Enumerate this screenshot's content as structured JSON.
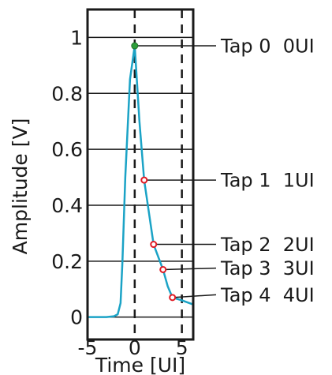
{
  "chart_data": {
    "type": "line",
    "title": "",
    "xlabel": "Time [UI]",
    "ylabel": "Amplitude [V]",
    "xlim": [
      -5,
      6.2
    ],
    "ylim": [
      -0.08,
      1.1
    ],
    "x_ticks": [
      {
        "value": -5,
        "label": "-5"
      },
      {
        "value": 0,
        "label": "0"
      },
      {
        "value": 5,
        "label": "5"
      }
    ],
    "y_ticks": [
      {
        "value": 0,
        "label": "0"
      },
      {
        "value": 0.2,
        "label": "0.2"
      },
      {
        "value": 0.4,
        "label": "0.4"
      },
      {
        "value": 0.6,
        "label": "0.6"
      },
      {
        "value": 0.8,
        "label": "0.8"
      },
      {
        "value": 1,
        "label": "1"
      }
    ],
    "horizontal_grid": true,
    "vertical_dashed_lines_x": [
      0,
      5
    ],
    "series": [
      {
        "color": "#1ba3c6",
        "x": [
          -5,
          -3,
          -2.2,
          -1.8,
          -1.5,
          -1.3,
          -1.0,
          -0.5,
          0,
          0.5,
          1.0,
          2.0,
          3.0,
          3.5,
          4.0,
          5.0,
          6.2
        ],
        "y": [
          0.0,
          0.0,
          0.003,
          0.01,
          0.05,
          0.2,
          0.5,
          0.85,
          0.97,
          0.7,
          0.49,
          0.26,
          0.17,
          0.11,
          0.07,
          0.06,
          0.045
        ]
      }
    ],
    "taps": [
      {
        "name": "Tap 0",
        "ui": "0UI",
        "x": 0,
        "y": 0.97,
        "marker": "filled",
        "color": "#2e9e3a",
        "label_y": 0.97
      },
      {
        "name": "Tap 1",
        "ui": "1UI",
        "x": 1,
        "y": 0.49,
        "marker": "open",
        "color": "#e01b24",
        "label_y": 0.49
      },
      {
        "name": "Tap 2",
        "ui": "2UI",
        "x": 2,
        "y": 0.26,
        "marker": "open",
        "color": "#e01b24",
        "label_y": 0.26
      },
      {
        "name": "Tap 3",
        "ui": "3UI",
        "x": 3,
        "y": 0.17,
        "marker": "open",
        "color": "#e01b24",
        "label_y": 0.175
      },
      {
        "name": "Tap 4",
        "ui": "4UI",
        "x": 4,
        "y": 0.07,
        "marker": "open",
        "color": "#e01b24",
        "label_y": 0.08
      }
    ]
  }
}
